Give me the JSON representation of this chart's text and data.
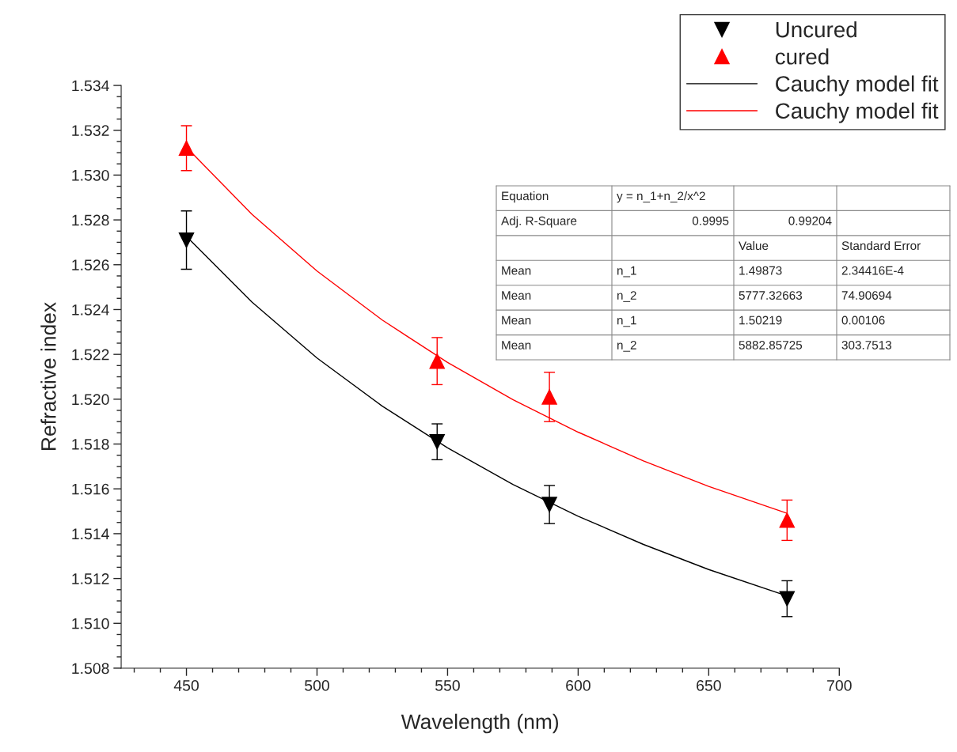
{
  "chart_data": {
    "type": "scatter",
    "xlabel": "Wavelength (nm)",
    "ylabel": "Refractive index",
    "x": [
      450,
      546,
      589,
      680
    ],
    "series": [
      {
        "name": "Uncured",
        "color": "#000000",
        "marker": "triangle_down",
        "values": [
          1.5271,
          1.5181,
          1.5153,
          1.5111
        ],
        "errors": [
          0.0013,
          0.0008,
          0.00085,
          0.0008
        ]
      },
      {
        "name": "cured",
        "color": "#ff0000",
        "marker": "triangle",
        "values": [
          1.5312,
          1.5217,
          1.5201,
          1.5146
        ],
        "errors": [
          0.001,
          0.00105,
          0.0011,
          0.0009
        ]
      },
      {
        "name": "Cauchy model fit",
        "type": "line",
        "color": "#000000",
        "line_style": "solid",
        "x": [
          450,
          475,
          500,
          525,
          550,
          575,
          600,
          625,
          650,
          680
        ],
        "values": [
          1.52726,
          1.52434,
          1.52184,
          1.51969,
          1.51783,
          1.5162,
          1.51478,
          1.51352,
          1.5124,
          1.51122
        ]
      },
      {
        "name": "Cauchy model fit",
        "type": "line",
        "color": "#ff0000",
        "line_style": "solid",
        "x": [
          450,
          475,
          500,
          525,
          550,
          575,
          600,
          625,
          650,
          680
        ],
        "values": [
          1.53124,
          1.52826,
          1.52572,
          1.52353,
          1.52164,
          1.51998,
          1.51853,
          1.51725,
          1.51611,
          1.51491
        ]
      }
    ],
    "xlim": [
      425,
      700
    ],
    "xticks": [
      450,
      500,
      550,
      600,
      650,
      700
    ],
    "ylim": [
      1.508,
      1.534
    ],
    "yticks": [
      1.508,
      {
        "value": 1.51,
        "label": "1.510"
      },
      1.512,
      1.514,
      1.516,
      1.518,
      {
        "value": 1.52,
        "label": "1.520"
      },
      1.522,
      1.524,
      1.526,
      1.528,
      {
        "value": 1.53,
        "label": "1.530"
      },
      1.532,
      1.534
    ],
    "grid": false,
    "legend": "top right",
    "annotations": [
      "Equation",
      "y = n_1+n_2/x^2",
      "Adj. R-Square",
      "0.9995",
      "0.99204",
      "Value",
      "Standard Error",
      "Mean",
      "n_1",
      "1.49873",
      "2.34416E-4",
      "Mean",
      "n_2",
      "5777.32663",
      "74.90694",
      "Mean",
      "n_1",
      "1.50219",
      "0.00106",
      "Mean",
      "n_2",
      "5882.85725",
      "303.7513"
    ]
  }
}
